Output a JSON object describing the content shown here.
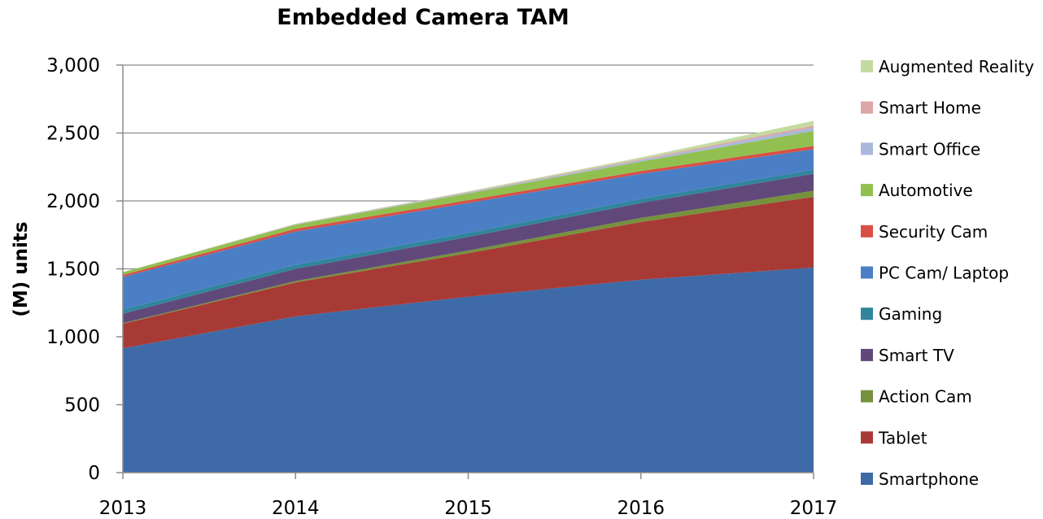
{
  "chart_data": {
    "type": "area",
    "stacked": true,
    "title": "Embedded Camera TAM",
    "xlabel": "",
    "ylabel": "(M) units",
    "x": [
      2013,
      2014,
      2015,
      2016,
      2017
    ],
    "x_tick_labels": [
      "2013",
      "2014",
      "2015",
      "2016",
      "2017"
    ],
    "ylim": [
      0,
      3000
    ],
    "y_ticks": [
      0,
      500,
      1000,
      1500,
      2000,
      2500,
      3000
    ],
    "y_tick_labels": [
      "0",
      "500",
      "1,000",
      "1,500",
      "2,000",
      "2,500",
      "3,000"
    ],
    "grid": "horizontal",
    "legend_position": "right",
    "series": [
      {
        "name": "Smartphone",
        "color": "#3E6AA8",
        "values": [
          915,
          1150,
          1295,
          1420,
          1510
        ]
      },
      {
        "name": "Tablet",
        "color": "#A83A36",
        "values": [
          180,
          250,
          320,
          425,
          520
        ]
      },
      {
        "name": "Action Cam",
        "color": "#76923C",
        "values": [
          5,
          10,
          20,
          30,
          45
        ]
      },
      {
        "name": "Smart TV",
        "color": "#60497A",
        "values": [
          70,
          90,
          100,
          110,
          125
        ]
      },
      {
        "name": "Gaming",
        "color": "#31859C",
        "values": [
          30,
          30,
          30,
          30,
          30
        ]
      },
      {
        "name": "PC Cam/ Laptop",
        "color": "#4A7FC6",
        "values": [
          240,
          245,
          220,
          185,
          150
        ]
      },
      {
        "name": "Security Cam",
        "color": "#D94F45",
        "values": [
          15,
          20,
          20,
          20,
          25
        ]
      },
      {
        "name": "Automotive",
        "color": "#92C050",
        "values": [
          20,
          30,
          50,
          70,
          110
        ]
      },
      {
        "name": "Smart Office",
        "color": "#A9B8DB",
        "values": [
          0,
          3,
          6,
          10,
          25
        ]
      },
      {
        "name": "Smart Home",
        "color": "#DCA7A6",
        "values": [
          0,
          2,
          4,
          8,
          15
        ]
      },
      {
        "name": "Augmented Reality",
        "color": "#C4DBA0",
        "values": [
          0,
          2,
          5,
          12,
          35
        ]
      }
    ]
  }
}
